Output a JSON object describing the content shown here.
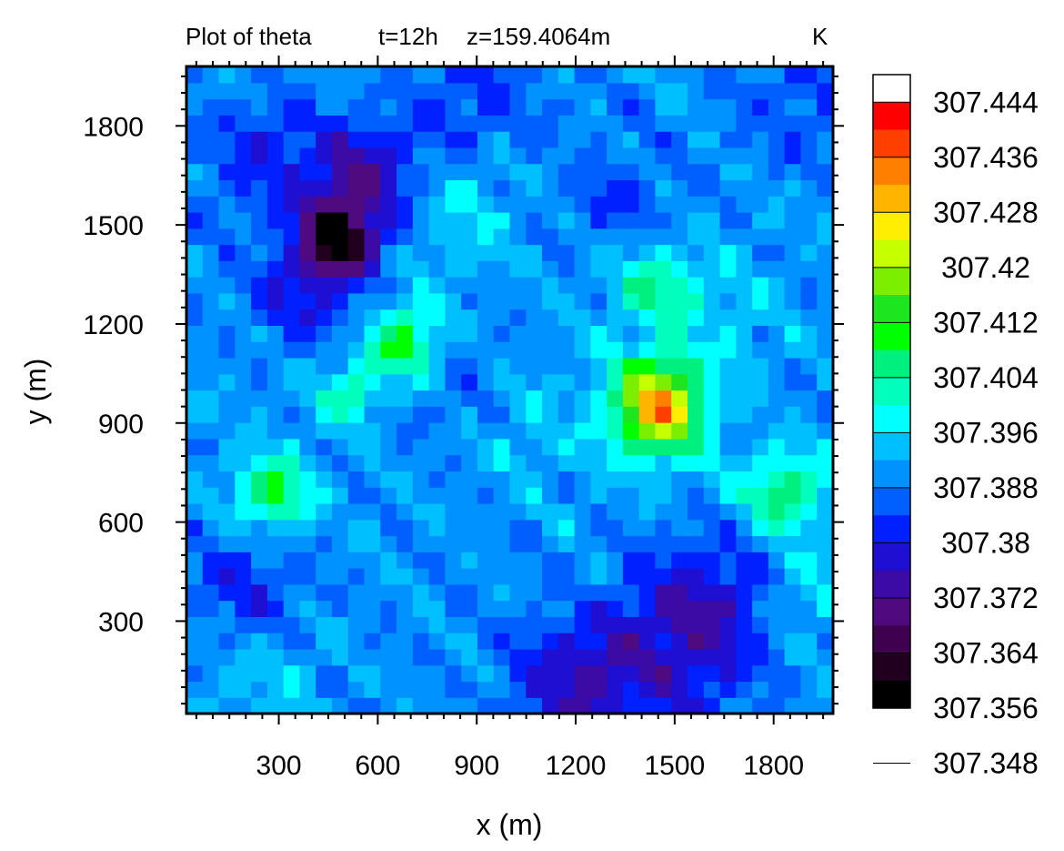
{
  "header": {
    "title": "Plot of theta",
    "time": "t=12h",
    "height": "z=159.4064m",
    "units": "K"
  },
  "chart_data": {
    "type": "heatmap",
    "title": "Plot of theta",
    "xlabel": "x (m)",
    "ylabel": "y (m)",
    "xlim": [
      20,
      1980
    ],
    "ylim": [
      20,
      1980
    ],
    "x_ticks": [
      "300",
      "600",
      "900",
      "1200",
      "1500",
      "1800"
    ],
    "y_ticks": [
      "300",
      "600",
      "900",
      "1200",
      "1500",
      "1800"
    ],
    "grid": false,
    "colorbar": {
      "levels": [
        "307.444",
        "307.436",
        "307.428",
        "307.42",
        "307.412",
        "307.404",
        "307.396",
        "307.388",
        "307.38",
        "307.372",
        "307.364",
        "307.356",
        "307.348"
      ],
      "colors": [
        "#ffffff",
        "#ff0000",
        "#ff3f00",
        "#ff7f00",
        "#ffb400",
        "#ffee00",
        "#c6ff00",
        "#7cee00",
        "#1ee61e",
        "#00ff00",
        "#00f07f",
        "#00ffbd",
        "#00ffff",
        "#00bfff",
        "#0093ff",
        "#0060ff",
        "#0020ff",
        "#1e0fd2",
        "#3c0aa5",
        "#4f0a7f",
        "#400050",
        "#20001e",
        "#000000"
      ]
    },
    "field_description": "potential temperature cells around 307.38 K with warm anomalies near (1450,960), (680,1150), (280,690), (1830,690) and cool anomalies near (480,1460) and (1200,120)"
  }
}
